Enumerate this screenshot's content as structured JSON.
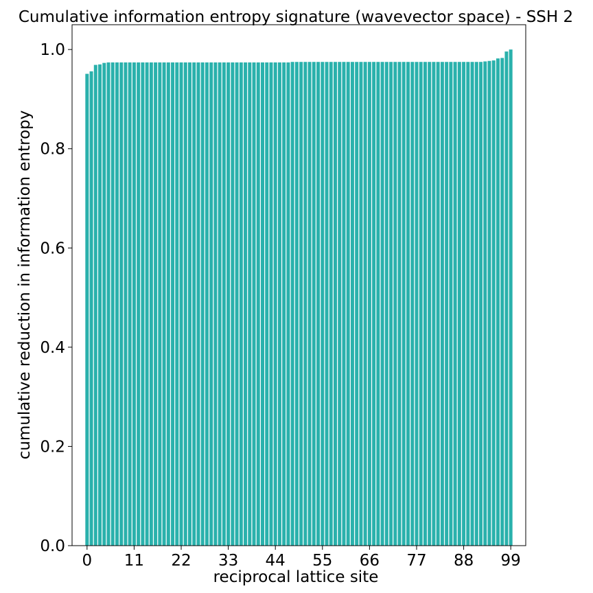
{
  "chart_data": {
    "type": "bar",
    "title": "Cumulative information entropy signature (wavevector space) - SSH 2",
    "xlabel": "reciprocal lattice site",
    "ylabel": "cumulative reduction in information entropy",
    "x": [
      0,
      1,
      2,
      3,
      4,
      5,
      6,
      7,
      8,
      9,
      10,
      11,
      12,
      13,
      14,
      15,
      16,
      17,
      18,
      19,
      20,
      21,
      22,
      23,
      24,
      25,
      26,
      27,
      28,
      29,
      30,
      31,
      32,
      33,
      34,
      35,
      36,
      37,
      38,
      39,
      40,
      41,
      42,
      43,
      44,
      45,
      46,
      47,
      48,
      49,
      50,
      51,
      52,
      53,
      54,
      55,
      56,
      57,
      58,
      59,
      60,
      61,
      62,
      63,
      64,
      65,
      66,
      67,
      68,
      69,
      70,
      71,
      72,
      73,
      74,
      75,
      76,
      77,
      78,
      79,
      80,
      81,
      82,
      83,
      84,
      85,
      86,
      87,
      88,
      89,
      90,
      91,
      92,
      93,
      94,
      95,
      96,
      97,
      98,
      99
    ],
    "values": [
      0.951,
      0.956,
      0.969,
      0.97,
      0.973,
      0.974,
      0.974,
      0.974,
      0.974,
      0.974,
      0.974,
      0.974,
      0.974,
      0.974,
      0.974,
      0.974,
      0.974,
      0.974,
      0.974,
      0.974,
      0.974,
      0.974,
      0.974,
      0.974,
      0.974,
      0.974,
      0.974,
      0.974,
      0.974,
      0.974,
      0.974,
      0.974,
      0.974,
      0.974,
      0.974,
      0.974,
      0.974,
      0.974,
      0.974,
      0.974,
      0.974,
      0.974,
      0.974,
      0.974,
      0.974,
      0.974,
      0.974,
      0.974,
      0.975,
      0.975,
      0.975,
      0.975,
      0.975,
      0.975,
      0.975,
      0.975,
      0.975,
      0.975,
      0.975,
      0.975,
      0.975,
      0.975,
      0.975,
      0.975,
      0.975,
      0.975,
      0.975,
      0.975,
      0.975,
      0.975,
      0.975,
      0.975,
      0.975,
      0.975,
      0.975,
      0.975,
      0.975,
      0.975,
      0.975,
      0.975,
      0.975,
      0.975,
      0.975,
      0.975,
      0.975,
      0.975,
      0.975,
      0.975,
      0.975,
      0.975,
      0.975,
      0.975,
      0.975,
      0.976,
      0.977,
      0.978,
      0.982,
      0.983,
      0.996,
      1.0
    ],
    "xticks": [
      "0",
      "11",
      "22",
      "33",
      "44",
      "55",
      "66",
      "77",
      "88",
      "99"
    ],
    "yticks": [
      "0.0",
      "0.2",
      "0.4",
      "0.6",
      "0.8",
      "1.0"
    ],
    "xlim": [
      -3.5,
      102.5
    ],
    "ylim": [
      0,
      1.05
    ],
    "grid": false,
    "legend": "none",
    "bar_color": "#2ab1ac"
  }
}
